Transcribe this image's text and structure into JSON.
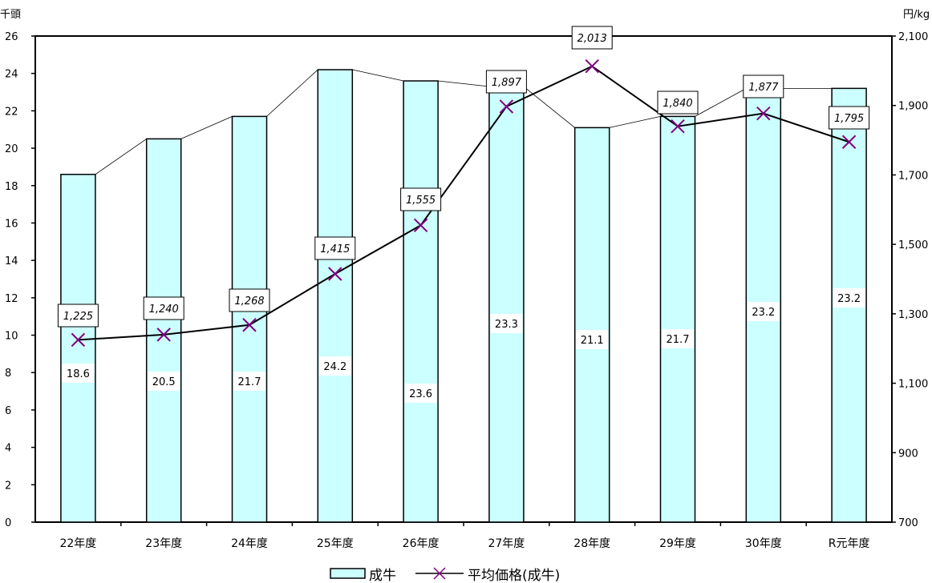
{
  "chart_data": {
    "type": "bar",
    "categories": [
      "22年度",
      "23年度",
      "24年度",
      "25年度",
      "26年度",
      "27年度",
      "28年度",
      "29年度",
      "30年度",
      "R元年度"
    ],
    "series": [
      {
        "name": "成牛",
        "type": "bar",
        "axis": "left",
        "values": [
          18.6,
          20.5,
          21.7,
          24.2,
          23.6,
          23.3,
          21.1,
          21.7,
          23.2,
          23.2
        ],
        "data_labels": [
          "18.6",
          "20.5",
          "21.7",
          "24.2",
          "23.6",
          "23.3",
          "21.1",
          "21.7",
          "23.2",
          "23.2"
        ],
        "color": "#ccffff",
        "stroke": "#000000"
      },
      {
        "name": "平均価格(成牛)",
        "type": "line",
        "axis": "right",
        "marker": "x",
        "values": [
          1225,
          1240,
          1268,
          1415,
          1555,
          1897,
          2013,
          1840,
          1877,
          1795
        ],
        "data_labels": [
          "1,225",
          "1,240",
          "1,268",
          "1,415",
          "1,555",
          "1,897",
          "2,013",
          "1,840",
          "1,877",
          "1,795"
        ],
        "color": "#000000",
        "marker_color": "#800080"
      }
    ],
    "y_left": {
      "unit": "千頭",
      "ylim": [
        0,
        26
      ],
      "ticks": [
        "0",
        "2",
        "4",
        "6",
        "8",
        "10",
        "12",
        "14",
        "16",
        "18",
        "20",
        "22",
        "24",
        "26"
      ]
    },
    "y_right": {
      "unit": "円/kg",
      "ylim": [
        700,
        2100
      ],
      "ticks": [
        "700",
        "900",
        "1,100",
        "1,300",
        "1,500",
        "1,700",
        "1,900",
        "2,100"
      ]
    },
    "series_lines": true,
    "grid": false,
    "legend": {
      "placement": "bottom",
      "items": [
        "成牛",
        "平均価格(成牛)"
      ]
    }
  }
}
